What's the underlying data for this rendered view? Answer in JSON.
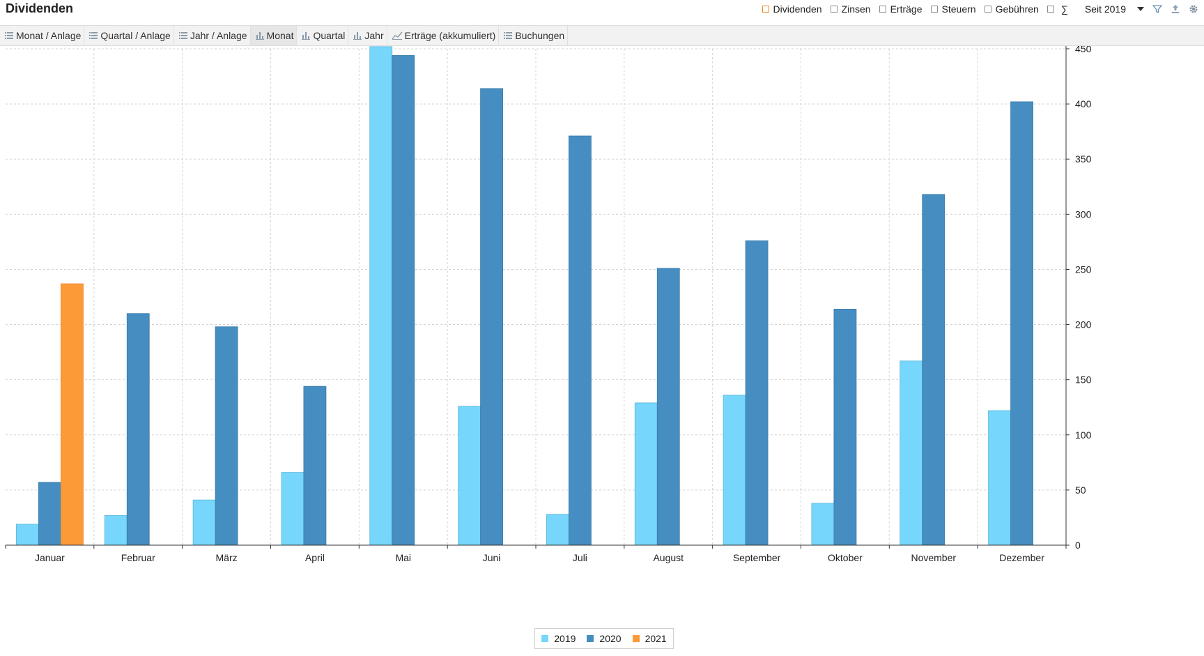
{
  "header": {
    "title": "Dividenden",
    "filters": [
      {
        "label": "Dividenden",
        "checked": true
      },
      {
        "label": "Zinsen",
        "checked": false
      },
      {
        "label": "Erträge",
        "checked": false
      },
      {
        "label": "Steuern",
        "checked": false
      },
      {
        "label": "Gebühren",
        "checked": false
      }
    ],
    "sum_symbol": "∑",
    "period": "Seit 2019",
    "tool_icons": [
      "filter-icon",
      "export-icon",
      "gear-icon"
    ]
  },
  "tabs": [
    {
      "label": "Monat / Anlage",
      "icon": "list-icon"
    },
    {
      "label": "Quartal / Anlage",
      "icon": "list-icon"
    },
    {
      "label": "Jahr / Anlage",
      "icon": "list-icon"
    },
    {
      "label": "Monat",
      "icon": "bar-chart-icon",
      "active": true
    },
    {
      "label": "Quartal",
      "icon": "bar-chart-icon"
    },
    {
      "label": "Jahr",
      "icon": "bar-chart-icon"
    },
    {
      "label": "Erträge (akkumuliert)",
      "icon": "line-chart-icon"
    },
    {
      "label": "Buchungen",
      "icon": "list-icon"
    }
  ],
  "chart_data": {
    "type": "bar",
    "categories": [
      "Januar",
      "Februar",
      "März",
      "April",
      "Mai",
      "Juni",
      "Juli",
      "August",
      "September",
      "Oktober",
      "November",
      "Dezember"
    ],
    "series": [
      {
        "name": "2019",
        "color": "#76d6fb",
        "values": [
          19,
          27,
          41,
          66,
          452,
          126,
          28,
          129,
          136,
          38,
          167,
          122
        ]
      },
      {
        "name": "2020",
        "color": "#468ec1",
        "values": [
          57,
          210,
          198,
          144,
          444,
          414,
          371,
          251,
          276,
          214,
          318,
          402
        ]
      },
      {
        "name": "2021",
        "color": "#fd9a38",
        "values": [
          237,
          null,
          null,
          null,
          null,
          null,
          null,
          null,
          null,
          null,
          null,
          null
        ]
      }
    ],
    "ylim": [
      0,
      450
    ],
    "yticks": [
      0,
      50,
      100,
      150,
      200,
      250,
      300,
      350,
      400,
      450
    ],
    "y_axis_side": "right",
    "grid": true,
    "legend_position": "bottom-center"
  }
}
